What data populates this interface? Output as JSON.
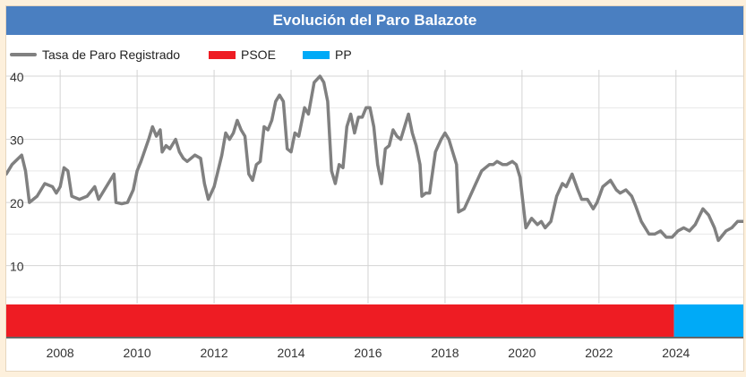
{
  "chart_data": {
    "type": "line",
    "title": "Evolución del Paro Balazote",
    "legend_position": "top-left",
    "grid": true,
    "xlim": [
      2006.6,
      2025.75
    ],
    "ylim": [
      4,
      41
    ],
    "x_ticks": [
      "2008",
      "2010",
      "2012",
      "2014",
      "2016",
      "2018",
      "2020",
      "2022",
      "2024"
    ],
    "y_ticks": [
      "10",
      "20",
      "30",
      "40"
    ],
    "series": [
      {
        "name": "Tasa de Paro Registrado",
        "color": "#808080",
        "points": [
          [
            2006.6,
            24.5
          ],
          [
            2006.75,
            26
          ],
          [
            2007.0,
            27.5
          ],
          [
            2007.1,
            25
          ],
          [
            2007.2,
            20
          ],
          [
            2007.4,
            21
          ],
          [
            2007.6,
            23
          ],
          [
            2007.8,
            22.5
          ],
          [
            2007.9,
            21.5
          ],
          [
            2008.0,
            22.5
          ],
          [
            2008.1,
            25.5
          ],
          [
            2008.2,
            25
          ],
          [
            2008.3,
            21
          ],
          [
            2008.5,
            20.5
          ],
          [
            2008.7,
            21
          ],
          [
            2008.9,
            22.5
          ],
          [
            2009.0,
            20.5
          ],
          [
            2009.2,
            22.5
          ],
          [
            2009.4,
            24.5
          ],
          [
            2009.45,
            20
          ],
          [
            2009.6,
            19.8
          ],
          [
            2009.75,
            20
          ],
          [
            2009.9,
            22
          ],
          [
            2010.0,
            25
          ],
          [
            2010.1,
            26.5
          ],
          [
            2010.3,
            30
          ],
          [
            2010.4,
            32
          ],
          [
            2010.5,
            30.5
          ],
          [
            2010.6,
            31.5
          ],
          [
            2010.65,
            28
          ],
          [
            2010.75,
            29
          ],
          [
            2010.85,
            28.5
          ],
          [
            2011.0,
            30
          ],
          [
            2011.1,
            28
          ],
          [
            2011.2,
            27
          ],
          [
            2011.3,
            26.5
          ],
          [
            2011.4,
            27
          ],
          [
            2011.5,
            27.5
          ],
          [
            2011.65,
            27
          ],
          [
            2011.75,
            23
          ],
          [
            2011.85,
            20.5
          ],
          [
            2012.0,
            22.5
          ],
          [
            2012.1,
            25
          ],
          [
            2012.2,
            27.5
          ],
          [
            2012.3,
            31
          ],
          [
            2012.4,
            30
          ],
          [
            2012.5,
            31
          ],
          [
            2012.6,
            33
          ],
          [
            2012.7,
            31.5
          ],
          [
            2012.8,
            30.5
          ],
          [
            2012.9,
            24.5
          ],
          [
            2013.0,
            23.5
          ],
          [
            2013.1,
            26
          ],
          [
            2013.2,
            26.5
          ],
          [
            2013.3,
            32
          ],
          [
            2013.4,
            31.5
          ],
          [
            2013.5,
            33
          ],
          [
            2013.6,
            36
          ],
          [
            2013.7,
            37
          ],
          [
            2013.8,
            36
          ],
          [
            2013.9,
            28.5
          ],
          [
            2014.0,
            28
          ],
          [
            2014.1,
            31
          ],
          [
            2014.2,
            30.5
          ],
          [
            2014.35,
            35
          ],
          [
            2014.45,
            34
          ],
          [
            2014.6,
            39
          ],
          [
            2014.75,
            40
          ],
          [
            2014.85,
            39
          ],
          [
            2014.95,
            36
          ],
          [
            2015.05,
            25
          ],
          [
            2015.15,
            23
          ],
          [
            2015.25,
            26
          ],
          [
            2015.35,
            25.5
          ],
          [
            2015.45,
            32
          ],
          [
            2015.55,
            34
          ],
          [
            2015.65,
            31
          ],
          [
            2015.75,
            33.5
          ],
          [
            2015.85,
            33.5
          ],
          [
            2015.95,
            35
          ],
          [
            2016.05,
            35
          ],
          [
            2016.15,
            32
          ],
          [
            2016.25,
            26
          ],
          [
            2016.35,
            23
          ],
          [
            2016.45,
            28.5
          ],
          [
            2016.55,
            29
          ],
          [
            2016.65,
            31.5
          ],
          [
            2016.75,
            30.5
          ],
          [
            2016.85,
            30
          ],
          [
            2016.95,
            32
          ],
          [
            2017.05,
            34
          ],
          [
            2017.15,
            31
          ],
          [
            2017.25,
            29
          ],
          [
            2017.35,
            26
          ],
          [
            2017.4,
            21
          ],
          [
            2017.5,
            21.5
          ],
          [
            2017.6,
            21.5
          ],
          [
            2017.75,
            28
          ],
          [
            2017.9,
            30
          ],
          [
            2018.0,
            31
          ],
          [
            2018.1,
            30
          ],
          [
            2018.2,
            28
          ],
          [
            2018.3,
            26
          ],
          [
            2018.35,
            18.5
          ],
          [
            2018.5,
            19
          ],
          [
            2018.65,
            21
          ],
          [
            2018.8,
            23
          ],
          [
            2018.95,
            25
          ],
          [
            2019.05,
            25.5
          ],
          [
            2019.15,
            26
          ],
          [
            2019.25,
            26
          ],
          [
            2019.35,
            26.5
          ],
          [
            2019.5,
            26
          ],
          [
            2019.6,
            26
          ],
          [
            2019.75,
            26.5
          ],
          [
            2019.85,
            26
          ],
          [
            2019.95,
            24
          ],
          [
            2020.1,
            16
          ],
          [
            2020.25,
            17.5
          ],
          [
            2020.4,
            16.5
          ],
          [
            2020.5,
            17
          ],
          [
            2020.6,
            16
          ],
          [
            2020.75,
            17
          ],
          [
            2020.9,
            21
          ],
          [
            2021.05,
            23
          ],
          [
            2021.15,
            22.5
          ],
          [
            2021.3,
            24.5
          ],
          [
            2021.45,
            22
          ],
          [
            2021.55,
            20.5
          ],
          [
            2021.7,
            20.5
          ],
          [
            2021.85,
            19
          ],
          [
            2021.95,
            20
          ],
          [
            2022.1,
            22.5
          ],
          [
            2022.3,
            23.5
          ],
          [
            2022.45,
            22
          ],
          [
            2022.55,
            21.5
          ],
          [
            2022.7,
            22
          ],
          [
            2022.85,
            21
          ],
          [
            2022.95,
            19.5
          ],
          [
            2023.1,
            17
          ],
          [
            2023.3,
            15
          ],
          [
            2023.45,
            15
          ],
          [
            2023.6,
            15.5
          ],
          [
            2023.75,
            14.5
          ],
          [
            2023.9,
            14.5
          ],
          [
            2024.05,
            15.5
          ],
          [
            2024.2,
            16
          ],
          [
            2024.35,
            15.5
          ],
          [
            2024.5,
            16.5
          ],
          [
            2024.7,
            19
          ],
          [
            2024.85,
            18
          ],
          [
            2025.0,
            16
          ],
          [
            2025.1,
            14
          ],
          [
            2025.3,
            15.5
          ],
          [
            2025.45,
            16
          ],
          [
            2025.6,
            17
          ],
          [
            2025.75,
            17
          ]
        ]
      }
    ],
    "bands": [
      {
        "name": "PSOE",
        "color": "#ee1c23",
        "from": 2006.6,
        "to": 2023.95
      },
      {
        "name": "PP",
        "color": "#00aaf7",
        "from": 2023.95,
        "to": 2025.75
      }
    ]
  }
}
